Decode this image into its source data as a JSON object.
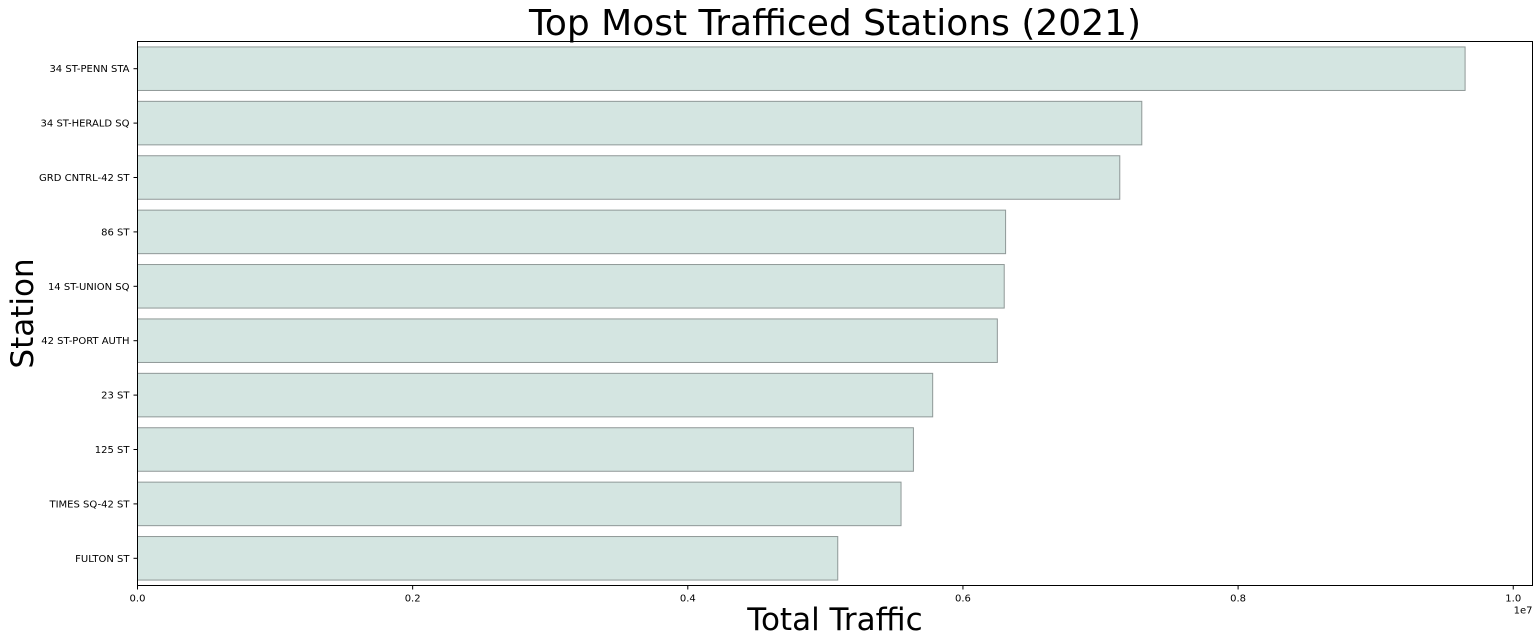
{
  "chart_data": {
    "type": "bar",
    "orientation": "horizontal",
    "title": "Top Most Trafficed Stations (2021)",
    "xlabel": "Total Traffic",
    "ylabel": "Station",
    "x_offset_label": "1e7",
    "xlim": [
      0,
      1.014
    ],
    "x_ticks": [
      0.0,
      0.2,
      0.4,
      0.6,
      0.8,
      1.0
    ],
    "x_tick_labels": [
      "0.0",
      "0.2",
      "0.4",
      "0.6",
      "0.8",
      "1.0"
    ],
    "categories": [
      "34 ST-PENN STA",
      "34 ST-HERALD SQ",
      "GRD CNTRL-42 ST",
      "86 ST",
      "14 ST-UNION SQ",
      "42 ST-PORT AUTH",
      "23 ST",
      "125 ST",
      "TIMES SQ-42 ST",
      "FULTON ST"
    ],
    "values": [
      0.965,
      0.73,
      0.714,
      0.631,
      0.63,
      0.625,
      0.578,
      0.564,
      0.555,
      0.509
    ],
    "bar_color": "#d4e5e1",
    "bar_edge_color": "#8f9897",
    "grid": false,
    "legend": "none"
  }
}
